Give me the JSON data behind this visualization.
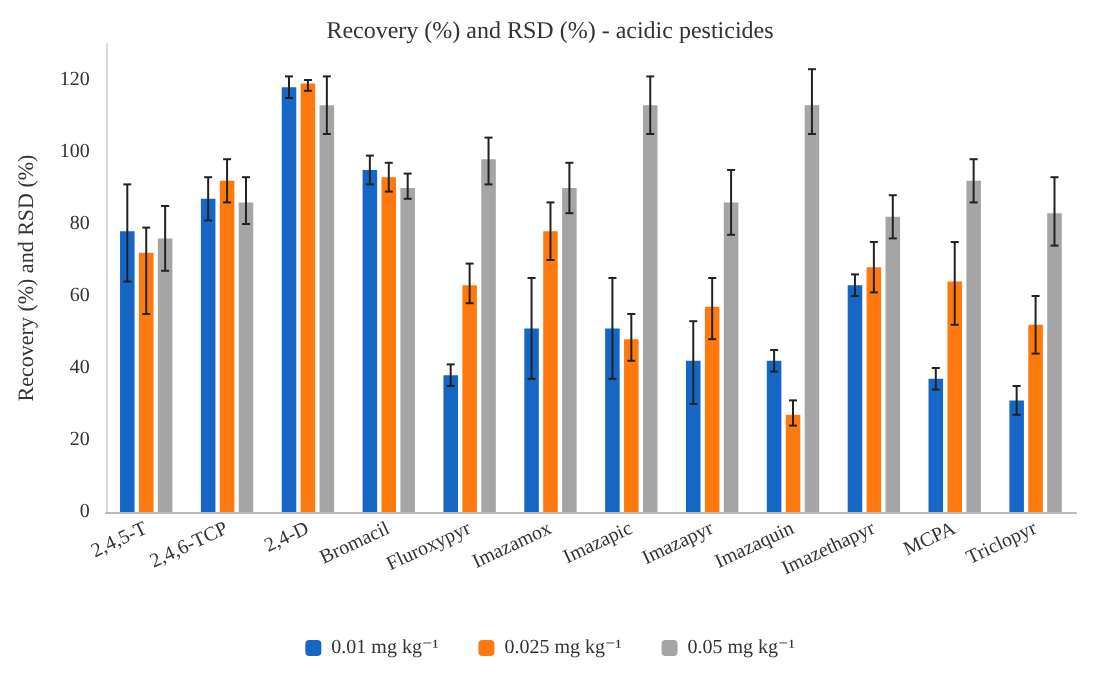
{
  "chart_data": {
    "type": "bar",
    "title": "Recovery (%) and RSD (%) - acidic pesticides",
    "ylabel": "Recovery (%) and RSD (%)",
    "categories": [
      "2,4,5-T",
      "2,4,6-TCP",
      "2,4-D",
      "Bromacil",
      "Fluroxypyr",
      "Imazamox",
      "Imazapic",
      "Imazapyr",
      "Imazaquin",
      "Imazethapyr",
      "MCPA",
      "Triclopyr"
    ],
    "series": [
      {
        "name": "0.01 mg kg⁻¹",
        "color": "#1666c5",
        "values": [
          78,
          87,
          118,
          95,
          38,
          51,
          51,
          42,
          42,
          63,
          37,
          31
        ],
        "errors": [
          [
            64,
            91
          ],
          [
            81,
            93
          ],
          [
            115,
            121
          ],
          [
            91,
            99
          ],
          [
            35,
            41
          ],
          [
            37,
            65
          ],
          [
            37,
            65
          ],
          [
            30,
            53
          ],
          [
            39,
            45
          ],
          [
            60,
            66
          ],
          [
            34,
            40
          ],
          [
            27,
            35
          ]
        ]
      },
      {
        "name": "0.025 mg kg⁻¹",
        "color": "#ff7a0e",
        "values": [
          72,
          92,
          119,
          93,
          63,
          78,
          48,
          57,
          27,
          68,
          64,
          52
        ],
        "errors": [
          [
            55,
            79
          ],
          [
            86,
            98
          ],
          [
            117,
            120
          ],
          [
            89,
            97
          ],
          [
            58,
            69
          ],
          [
            70,
            86
          ],
          [
            42,
            55
          ],
          [
            48,
            65
          ],
          [
            24,
            31
          ],
          [
            61,
            75
          ],
          [
            52,
            75
          ],
          [
            44,
            60
          ]
        ]
      },
      {
        "name": "0.05 mg kg⁻¹",
        "color": "#a5a5a5",
        "values": [
          76,
          86,
          113,
          90,
          98,
          90,
          113,
          86,
          113,
          82,
          92,
          83
        ],
        "errors": [
          [
            67,
            85
          ],
          [
            80,
            93
          ],
          [
            105,
            121
          ],
          [
            87,
            94
          ],
          [
            91,
            104
          ],
          [
            83,
            97
          ],
          [
            105,
            121
          ],
          [
            77,
            95
          ],
          [
            105,
            123
          ],
          [
            76,
            88
          ],
          [
            86,
            98
          ],
          [
            74,
            93
          ]
        ]
      }
    ],
    "ylim": [
      0,
      130
    ],
    "yticks": [
      0,
      20,
      40,
      60,
      80,
      100,
      120
    ],
    "grid": false,
    "legend": "bottom"
  }
}
